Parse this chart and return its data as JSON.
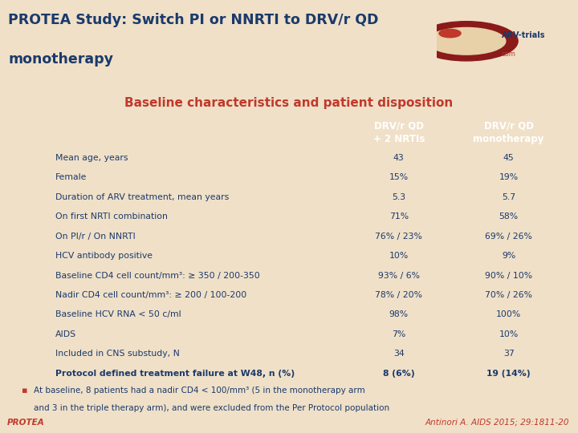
{
  "title_line1": "PROTEA Study: Switch PI or NNRTI to DRV/r QD",
  "title_line2": "monotherapy",
  "subtitle": "Baseline characteristics and patient disposition",
  "bg_color": "#f0e0c8",
  "title_color": "#1a3a6b",
  "subtitle_color": "#c0392b",
  "header1": "DRV/r QD\n+ 2 NRTIs",
  "header2": "DRV/r QD\nmonotherapy",
  "header1_bg": "#2e9b8f",
  "header2_bg": "#5cb85c",
  "header_text_color": "#ffffff",
  "rows": [
    [
      "Mean age, years",
      "43",
      "45",
      false
    ],
    [
      "Female",
      "15%",
      "19%",
      false
    ],
    [
      "Duration of ARV treatment, mean years",
      "5.3",
      "5.7",
      false
    ],
    [
      "On first NRTI combination",
      "71%",
      "58%",
      false
    ],
    [
      "On PI/r / On NNRTI",
      "76% / 23%",
      "69% / 26%",
      false
    ],
    [
      "HCV antibody positive",
      "10%",
      "9%",
      false
    ],
    [
      "Baseline CD4 cell count/mm³: ≥ 350 / 200-350",
      "93% / 6%",
      "90% / 10%",
      false
    ],
    [
      "Nadir CD4 cell count/mm³: ≥ 200 / 100-200",
      "78% / 20%",
      "70% / 26%",
      false
    ],
    [
      "Baseline HCV RNA < 50 c/ml",
      "98%",
      "100%",
      false
    ],
    [
      "AIDS",
      "7%",
      "10%",
      false
    ],
    [
      "Included in CNS substudy, N",
      "34",
      "37",
      false
    ],
    [
      "Protocol defined treatment failure at W48, n (%)",
      "8 (6%)",
      "19 (14%)",
      true
    ]
  ],
  "row_color_even": "#d5dde5",
  "row_color_odd": "#e5e8ec",
  "row_text_color": "#1a3a6b",
  "bullet_line1": "At baseline, 8 patients had a nadir CD4 < 100/mm³ (5 in the monotherapy arm",
  "bullet_line2": "and 3 in the triple therapy arm), and were excluded from the Per Protocol population",
  "bullet_color": "#c0392b",
  "text_color": "#1a3a6b",
  "footer_left": "PROTEA",
  "footer_right": "Antinori A. AIDS 2015; 29:1811-20",
  "footer_color": "#c0392b",
  "divider_blue": "#1a3a6b",
  "divider_orange": "#c8711a"
}
